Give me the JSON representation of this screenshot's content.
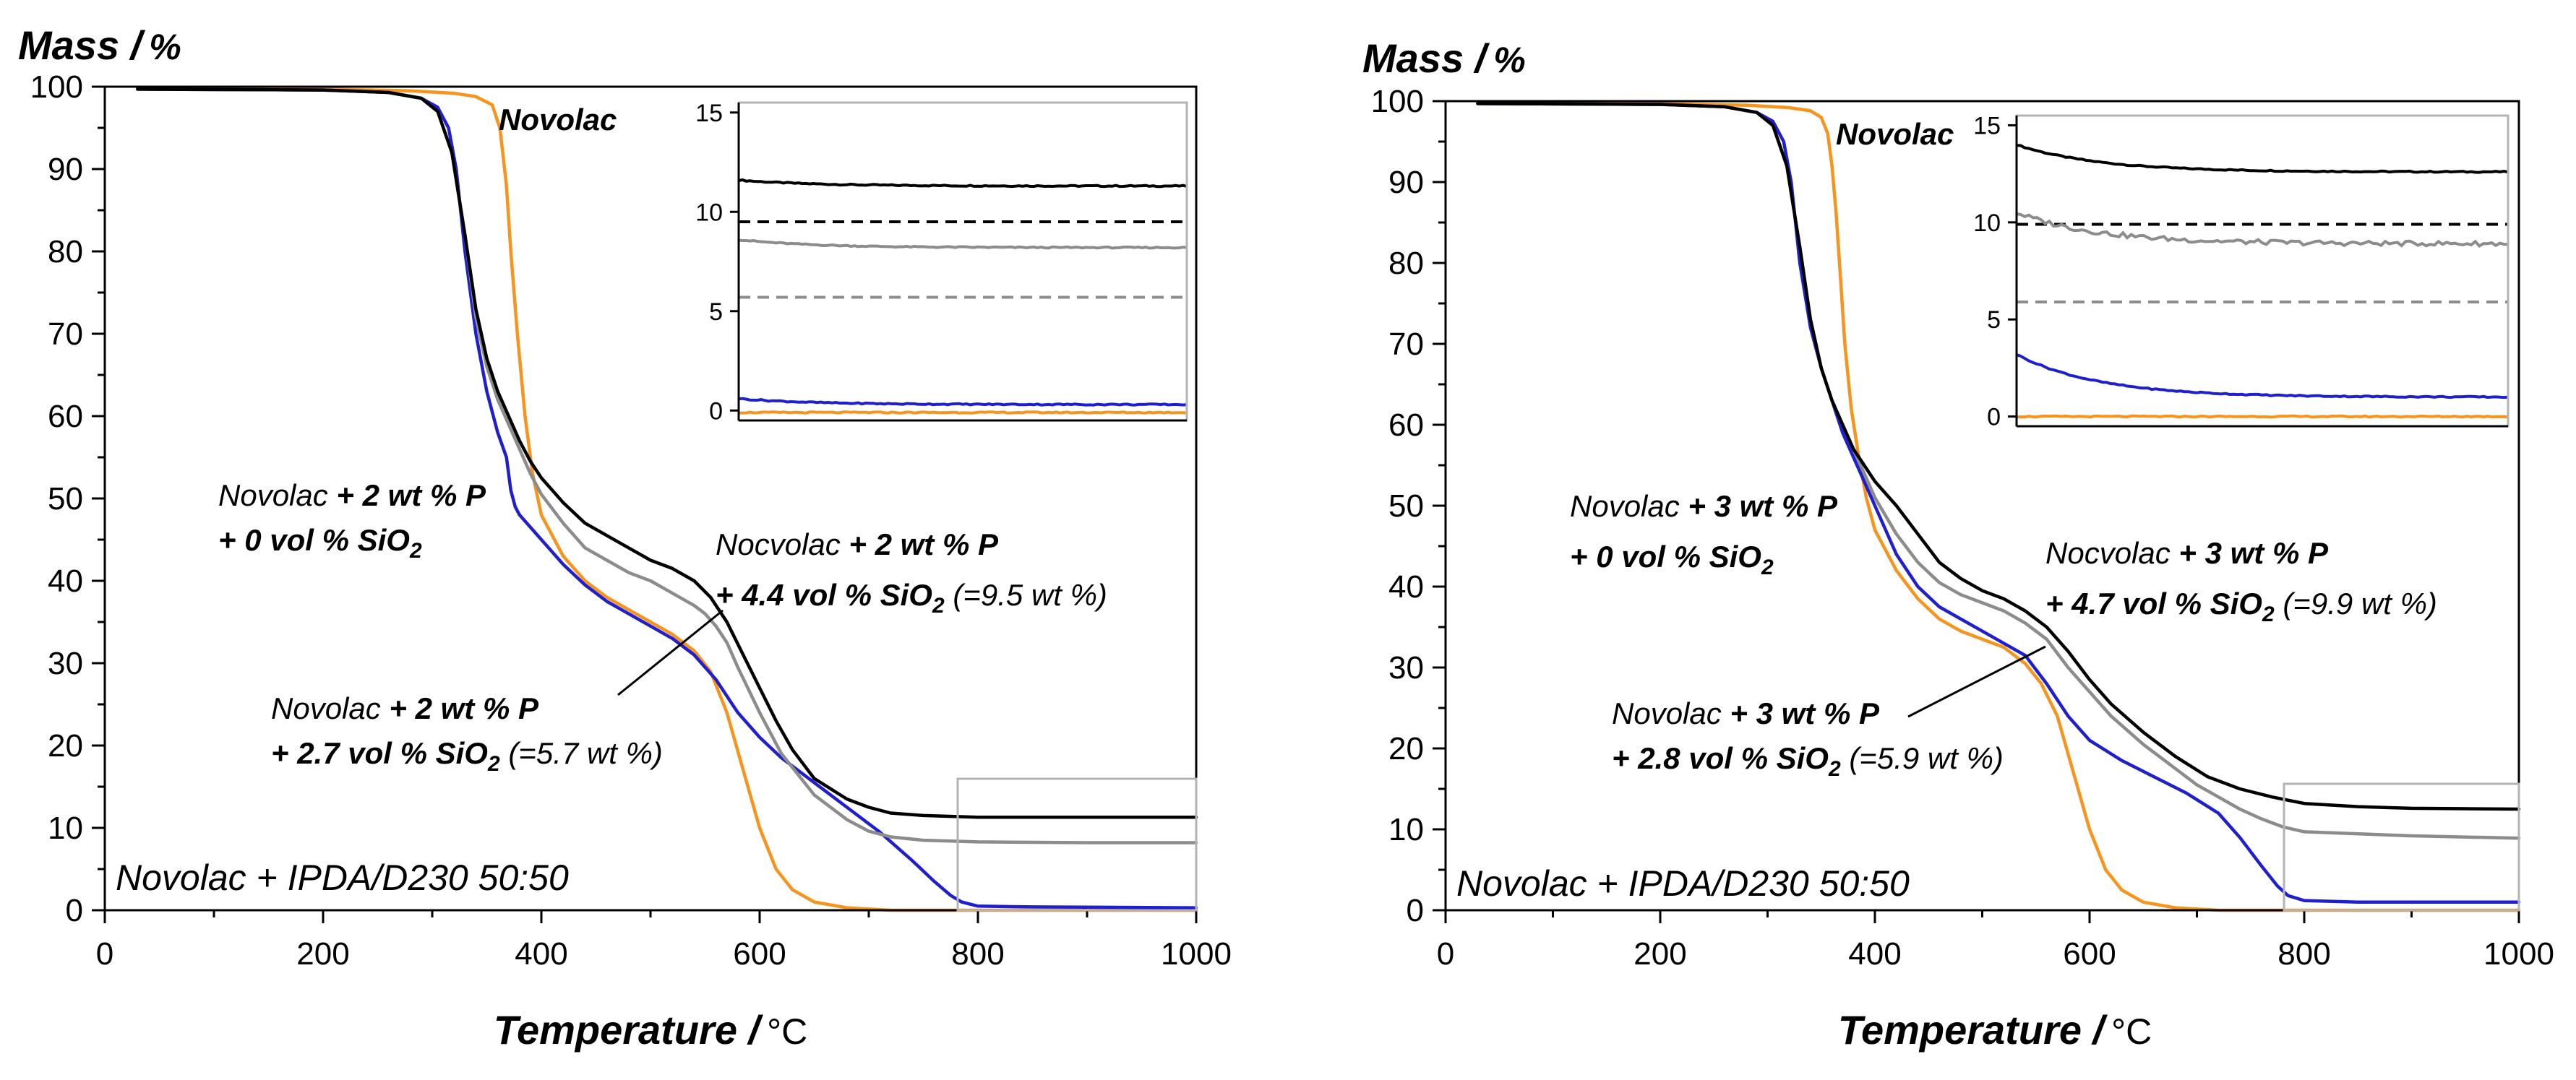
{
  "colors": {
    "novolac": "#f7941d",
    "p_only": "#1f1fd0",
    "sio2_low": "#8c8c8c",
    "sio2_high": "#000000"
  },
  "chart_data": [
    {
      "type": "line",
      "panel": "left",
      "ylabel_bold": "Mass /",
      "ylabel_unit": "%",
      "xlabel_bold": "Temperature /",
      "xlabel_unit": "°C",
      "xlim": [
        0,
        1000
      ],
      "ylim": [
        0,
        100
      ],
      "xticks": [
        "0",
        "200",
        "400",
        "600",
        "800",
        "1000"
      ],
      "yticks": [
        "0",
        "10",
        "20",
        "30",
        "40",
        "50",
        "60",
        "70",
        "80",
        "90",
        "100"
      ],
      "note": "Novolac + IPDA/D230 50:50",
      "labels": {
        "novolac": "Novolac",
        "p_only_1a": "Novolac",
        "p_only_1b": " + 2 wt % P",
        "p_only_2": "+ 0 vol % SiO",
        "p_only_2sub": "2",
        "sio2_high_1a": "Nocvolac",
        "sio2_high_1b": " + 2 wt % P",
        "sio2_high_2a": "+ 4.4 vol % SiO",
        "sio2_high_2sub": "2",
        "sio2_high_2b": " (=9.5 wt %)",
        "sio2_low_1a": "Novolac",
        "sio2_low_1b": " + 2 wt % P",
        "sio2_low_2a": "+ 2.7 vol % SiO",
        "sio2_low_2sub": "2",
        "sio2_low_2b": " (=5.7 wt %)"
      },
      "series": [
        {
          "name": "Novolac",
          "color_key": "novolac",
          "x": [
            30,
            200,
            280,
            320,
            340,
            355,
            362,
            368,
            372,
            378,
            385,
            392,
            400,
            420,
            440,
            460,
            480,
            500,
            520,
            540,
            555,
            570,
            585,
            600,
            615,
            630,
            650,
            680,
            720,
            800,
            1000
          ],
          "y": [
            99.8,
            99.7,
            99.5,
            99.2,
            98.8,
            97.8,
            95,
            88,
            80,
            70,
            60,
            53,
            48,
            43,
            40,
            38,
            36.5,
            35,
            33.5,
            31.5,
            29,
            24,
            17,
            10,
            5,
            2.5,
            1,
            0.3,
            0,
            0,
            0
          ]
        },
        {
          "name": "Novolac + 2 wt % P + 0 vol % SiO2",
          "color_key": "p_only",
          "x": [
            30,
            200,
            260,
            290,
            305,
            315,
            322,
            330,
            340,
            350,
            360,
            368,
            372,
            376,
            380,
            390,
            400,
            420,
            440,
            460,
            480,
            500,
            520,
            540,
            560,
            580,
            600,
            620,
            650,
            680,
            710,
            740,
            760,
            775,
            785,
            800,
            850,
            1000
          ],
          "y": [
            99.7,
            99.6,
            99.3,
            98.6,
            97.5,
            95,
            90,
            80,
            70,
            63,
            58,
            55,
            51,
            49,
            48,
            46.5,
            45,
            42,
            39.5,
            37.5,
            36,
            34.5,
            33,
            31,
            28,
            24,
            21,
            18.5,
            15.5,
            12.5,
            9.5,
            6,
            3.5,
            1.8,
            1,
            0.5,
            0.4,
            0.3
          ]
        },
        {
          "name": "Novolac + 2 wt % P + 2.7 vol % SiO2",
          "color_key": "sio2_low",
          "x": [
            30,
            200,
            260,
            290,
            305,
            318,
            330,
            340,
            350,
            360,
            370,
            380,
            390,
            400,
            420,
            440,
            460,
            480,
            500,
            520,
            540,
            550,
            560,
            570,
            580,
            600,
            620,
            650,
            680,
            700,
            720,
            750,
            800,
            900,
            1000
          ],
          "y": [
            99.7,
            99.6,
            99.3,
            98.6,
            97,
            92,
            82,
            72,
            66,
            62,
            59,
            56,
            53,
            50.5,
            47,
            44,
            42.5,
            41,
            40,
            38.5,
            37,
            36,
            34.5,
            32.5,
            29.5,
            24,
            19,
            14,
            11,
            9.6,
            8.9,
            8.5,
            8.3,
            8.2,
            8.2
          ]
        },
        {
          "name": "Nocvolac + 2 wt % P + 4.4 vol % SiO2",
          "color_key": "sio2_high",
          "x": [
            30,
            200,
            260,
            290,
            305,
            318,
            330,
            340,
            350,
            360,
            370,
            380,
            390,
            400,
            420,
            440,
            460,
            480,
            500,
            520,
            540,
            555,
            570,
            585,
            600,
            615,
            630,
            650,
            680,
            700,
            720,
            750,
            800,
            900,
            1000
          ],
          "y": [
            99.7,
            99.6,
            99.3,
            98.6,
            97,
            92,
            82,
            73,
            67,
            63,
            60,
            57,
            54.5,
            52.5,
            49.5,
            47,
            45.5,
            44,
            42.5,
            41.5,
            40,
            38,
            35,
            31,
            27,
            23,
            19.5,
            16,
            13.5,
            12.5,
            11.8,
            11.5,
            11.3,
            11.3,
            11.3
          ]
        }
      ],
      "inset": {
        "yticks": [
          "0",
          "5",
          "10",
          "15"
        ],
        "ylim": [
          -0.5,
          15.5
        ],
        "series": [
          {
            "name": "sio2_high",
            "color_key": "sio2_high",
            "y_start": 11.6,
            "y_end": 11.3
          },
          {
            "name": "ref_9.5",
            "color_key": "sio2_high",
            "dashed": true,
            "y_start": 9.5,
            "y_end": 9.5
          },
          {
            "name": "sio2_low",
            "color_key": "sio2_low",
            "y_start": 8.6,
            "y_end": 8.2
          },
          {
            "name": "ref_5.7",
            "color_key": "sio2_low",
            "dashed": true,
            "y_start": 5.7,
            "y_end": 5.7
          },
          {
            "name": "p_only",
            "color_key": "p_only",
            "y_start": 0.6,
            "y_end": 0.3
          },
          {
            "name": "novolac",
            "color_key": "novolac",
            "y_start": -0.1,
            "y_end": -0.1
          }
        ]
      }
    },
    {
      "type": "line",
      "panel": "right",
      "ylabel_bold": "Mass /",
      "ylabel_unit": "%",
      "xlabel_bold": "Temperature /",
      "xlabel_unit": "°C",
      "xlim": [
        0,
        1000
      ],
      "ylim": [
        0,
        100
      ],
      "xticks": [
        "0",
        "200",
        "400",
        "600",
        "800",
        "1000"
      ],
      "yticks": [
        "0",
        "10",
        "20",
        "30",
        "40",
        "50",
        "60",
        "70",
        "80",
        "90",
        "100"
      ],
      "note": "Novolac + IPDA/D230 50:50",
      "labels": {
        "novolac": "Novolac",
        "p_only_1a": "Novolac",
        "p_only_1b": " + 3 wt % P",
        "p_only_2": "+ 0 vol % SiO",
        "p_only_2sub": "2",
        "sio2_high_1a": "Nocvolac",
        "sio2_high_1b": " + 3 wt % P",
        "sio2_high_2a": "+ 4.7 vol % SiO",
        "sio2_high_2sub": "2",
        "sio2_high_2b": " (=9.9 wt %)",
        "sio2_low_1a": "Novolac",
        "sio2_low_1b": " + 3 wt % P",
        "sio2_low_2a": "+ 2.8 vol % SiO",
        "sio2_low_2sub": "2",
        "sio2_low_2b": " (=5.9 wt %)"
      },
      "series": [
        {
          "name": "Novolac",
          "color_key": "novolac",
          "x": [
            30,
            200,
            280,
            320,
            340,
            350,
            356,
            360,
            364,
            368,
            372,
            378,
            385,
            392,
            400,
            420,
            440,
            460,
            480,
            500,
            520,
            540,
            555,
            570,
            585,
            600,
            615,
            630,
            650,
            680,
            720,
            800,
            1000
          ],
          "y": [
            99.8,
            99.7,
            99.5,
            99.2,
            98.8,
            98,
            96,
            92,
            86,
            78,
            70,
            62,
            56,
            51,
            47,
            42,
            38.5,
            36,
            34.5,
            33.5,
            32.5,
            30.5,
            28,
            24,
            17,
            10,
            5,
            2.5,
            1,
            0.3,
            0,
            0,
            0
          ]
        },
        {
          "name": "Novolac + 3 wt % P + 0 vol % SiO2",
          "color_key": "p_only",
          "x": [
            30,
            200,
            260,
            290,
            305,
            315,
            322,
            330,
            340,
            350,
            360,
            370,
            380,
            390,
            400,
            420,
            440,
            460,
            480,
            500,
            520,
            540,
            560,
            580,
            600,
            630,
            660,
            690,
            720,
            740,
            760,
            775,
            785,
            800,
            850,
            1000
          ],
          "y": [
            99.7,
            99.6,
            99.3,
            98.6,
            97.5,
            95,
            90,
            80,
            72,
            67,
            63,
            59,
            56,
            53,
            50,
            44,
            40,
            37.5,
            36,
            34.5,
            33,
            31.5,
            28,
            24,
            21,
            18.5,
            16.5,
            14.5,
            12,
            9,
            5.5,
            3,
            1.8,
            1.2,
            1,
            1
          ]
        },
        {
          "name": "Novolac + 3 wt % P + 2.8 vol % SiO2",
          "color_key": "sio2_low",
          "x": [
            30,
            200,
            260,
            290,
            305,
            318,
            330,
            340,
            350,
            360,
            370,
            380,
            390,
            400,
            420,
            440,
            460,
            480,
            500,
            520,
            540,
            560,
            580,
            600,
            620,
            650,
            680,
            700,
            720,
            740,
            760,
            780,
            800,
            900,
            1000
          ],
          "y": [
            99.7,
            99.6,
            99.3,
            98.6,
            97,
            92,
            82,
            73,
            67,
            63,
            60,
            57,
            54,
            51,
            46.5,
            43,
            40.5,
            39,
            38,
            37,
            35.5,
            33.5,
            30,
            27,
            24,
            20.5,
            17.5,
            15.5,
            14,
            12.5,
            11.3,
            10.3,
            9.7,
            9.2,
            8.9
          ]
        },
        {
          "name": "Nocvolac + 3 wt % P + 4.7 vol % SiO2",
          "color_key": "sio2_high",
          "x": [
            30,
            200,
            260,
            290,
            305,
            318,
            330,
            340,
            350,
            360,
            370,
            380,
            390,
            400,
            420,
            440,
            460,
            480,
            500,
            520,
            540,
            560,
            580,
            600,
            620,
            650,
            680,
            710,
            740,
            770,
            800,
            850,
            900,
            1000
          ],
          "y": [
            99.7,
            99.6,
            99.3,
            98.6,
            97,
            92,
            82,
            73,
            67,
            63,
            60,
            57,
            55,
            53,
            50,
            46.5,
            43,
            41,
            39.5,
            38.5,
            37,
            35,
            32,
            28.5,
            25.5,
            22,
            19,
            16.5,
            15,
            14,
            13.2,
            12.8,
            12.6,
            12.5
          ]
        }
      ],
      "inset": {
        "yticks": [
          "0",
          "5",
          "10",
          "15"
        ],
        "ylim": [
          -0.5,
          15.5
        ],
        "series": [
          {
            "name": "sio2_high",
            "color_key": "sio2_high",
            "y_start": 14.0,
            "y_end": 12.6
          },
          {
            "name": "ref_9.9",
            "color_key": "sio2_high",
            "dashed": true,
            "y_start": 9.9,
            "y_end": 9.9
          },
          {
            "name": "sio2_low",
            "color_key": "sio2_low",
            "y_start": 10.5,
            "y_end": 8.9
          },
          {
            "name": "ref_5.9",
            "color_key": "sio2_low",
            "dashed": true,
            "y_start": 5.9,
            "y_end": 5.9
          },
          {
            "name": "p_only",
            "color_key": "p_only",
            "y_start": 3.2,
            "y_end": 1.0
          },
          {
            "name": "novolac",
            "color_key": "novolac",
            "y_start": 0,
            "y_end": 0
          }
        ]
      }
    }
  ]
}
